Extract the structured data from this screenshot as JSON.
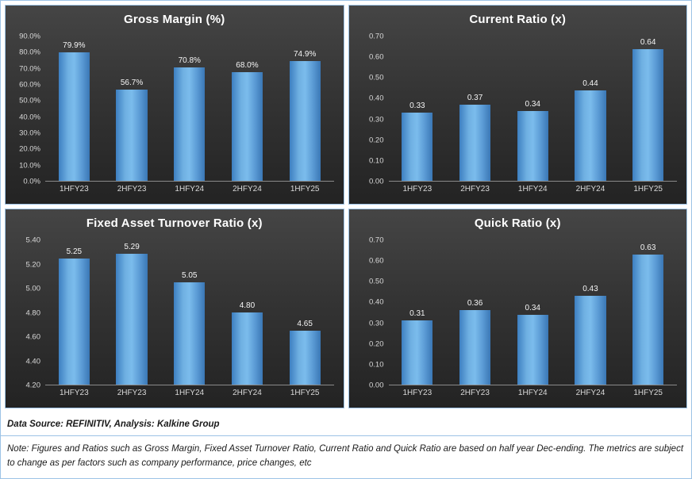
{
  "colors": {
    "bar_fill": "#5b9bd5",
    "panel_background_top": "#454545",
    "panel_background_bottom": "#232323",
    "panel_border": "#9dc3e6",
    "outer_border": "#9dc3e6",
    "title_text": "#ffffff",
    "axis_text": "#d9d9d9",
    "data_label_text": "#f5f5f5",
    "footer_text": "#1a1a1a"
  },
  "chart_data": [
    {
      "type": "bar",
      "title": "Gross Margin (%)",
      "categories": [
        "1HFY23",
        "2HFY23",
        "1HFY24",
        "2HFY24",
        "1HFY25"
      ],
      "values": [
        79.9,
        56.7,
        70.8,
        68.0,
        74.9
      ],
      "value_labels": [
        "79.9%",
        "56.7%",
        "70.8%",
        "68.0%",
        "74.9%"
      ],
      "ylim": [
        0,
        90
      ],
      "yticks": [
        "0.0%",
        "10.0%",
        "20.0%",
        "30.0%",
        "40.0%",
        "50.0%",
        "60.0%",
        "70.0%",
        "80.0%",
        "90.0%"
      ],
      "xlabel": "",
      "ylabel": "",
      "grid": false,
      "legend": "none"
    },
    {
      "type": "bar",
      "title": "Current Ratio (x)",
      "categories": [
        "1HFY23",
        "2HFY23",
        "1HFY24",
        "2HFY24",
        "1HFY25"
      ],
      "values": [
        0.33,
        0.37,
        0.34,
        0.44,
        0.64
      ],
      "value_labels": [
        "0.33",
        "0.37",
        "0.34",
        "0.44",
        "0.64"
      ],
      "ylim": [
        0,
        0.7
      ],
      "yticks": [
        "0.00",
        "0.10",
        "0.20",
        "0.30",
        "0.40",
        "0.50",
        "0.60",
        "0.70"
      ],
      "xlabel": "",
      "ylabel": "",
      "grid": false,
      "legend": "none"
    },
    {
      "type": "bar",
      "title": "Fixed Asset Turnover Ratio (x)",
      "categories": [
        "1HFY23",
        "2HFY23",
        "1HFY24",
        "2HFY24",
        "1HFY25"
      ],
      "values": [
        5.25,
        5.29,
        5.05,
        4.8,
        4.65
      ],
      "value_labels": [
        "5.25",
        "5.29",
        "5.05",
        "4.80",
        "4.65"
      ],
      "ylim": [
        4.2,
        5.4
      ],
      "yticks": [
        "4.20",
        "4.40",
        "4.60",
        "4.80",
        "5.00",
        "5.20",
        "5.40"
      ],
      "xlabel": "",
      "ylabel": "",
      "grid": false,
      "legend": "none"
    },
    {
      "type": "bar",
      "title": "Quick Ratio (x)",
      "categories": [
        "1HFY23",
        "2HFY23",
        "1HFY24",
        "2HFY24",
        "1HFY25"
      ],
      "values": [
        0.31,
        0.36,
        0.34,
        0.43,
        0.63
      ],
      "value_labels": [
        "0.31",
        "0.36",
        "0.34",
        "0.43",
        "0.63"
      ],
      "ylim": [
        0,
        0.7
      ],
      "yticks": [
        "0.00",
        "0.10",
        "0.20",
        "0.30",
        "0.40",
        "0.50",
        "0.60",
        "0.70"
      ],
      "xlabel": "",
      "ylabel": "",
      "grid": false,
      "legend": "none"
    }
  ],
  "footer": {
    "source": "Data Source: REFINITIV, Analysis: Kalkine Group",
    "note": "Note: Figures and Ratios such as Gross Margin, Fixed Asset Turnover Ratio, Current Ratio and Quick Ratio are based on half year Dec-ending. The metrics are subject to change as per factors such as company performance, price changes, etc"
  }
}
